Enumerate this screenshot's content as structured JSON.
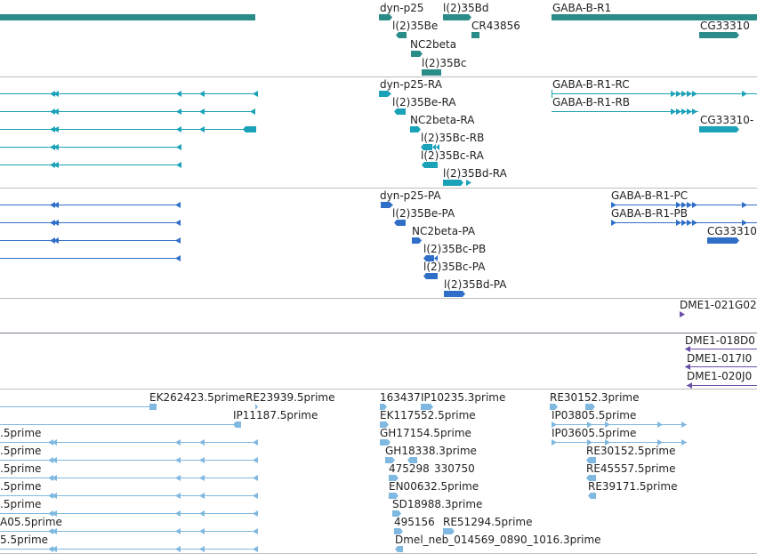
{
  "colors": {
    "gene": "#2a8c88",
    "mrna": "#1aa2b8",
    "protein": "#2f6fc8",
    "ests_purple": "#6b4fa8",
    "ests_light": "#7fb8e0",
    "separator": "#bdbdbd"
  },
  "genes": {
    "labels": [
      "dyn-p25",
      "l(2)35Bd",
      "GABA-B-R1",
      "l(2)35Be",
      "CR43856",
      "NC2beta",
      "CG33310",
      "l(2)35Bc"
    ]
  },
  "transcripts": {
    "labels": [
      "dyn-p25-RA",
      "GABA-B-R1-RC",
      "l(2)35Be-RA",
      "GABA-B-R1-RB",
      "NC2beta-RA",
      "CG33310-",
      "l(2)35Bc-RB",
      "l(2)35Bc-RA",
      "l(2)35Bd-RA"
    ]
  },
  "proteins": {
    "labels": [
      "dyn-p25-PA",
      "GABA-B-R1-PC",
      "l(2)35Be-PA",
      "GABA-B-R1-PB",
      "NC2beta-PA",
      "CG33310",
      "l(2)35Bc-PB",
      "l(2)35Bc-PA",
      "l(2)35Bd-PA"
    ]
  },
  "clones1": {
    "labels": [
      "DME1-021G02"
    ]
  },
  "clones2": {
    "labels": [
      "DME1-018D0",
      "DME1-017I0",
      "DME1-020J0"
    ]
  },
  "ests": {
    "labels": [
      "EK262423.5prime",
      "RE23939.5prime",
      "163437",
      "IP10235.3prime",
      "RE30152.3prime",
      "IP11187.5prime",
      "EK117552.5prime",
      "IP03805.5prime",
      ".5prime",
      "GH17154.5prime",
      "IP03605.5prime",
      ".5prime",
      "GH18338.3prime",
      "RE30152.5prime",
      ".5prime",
      "475298",
      "330750",
      "RE45557.5prime",
      ".5prime",
      "EN00632.5prime",
      "RE39171.5prime",
      ".5prime",
      "SD18988.3prime",
      "A05.5prime",
      "495156",
      "RE51294.5prime",
      "5.5prime",
      "Dmel_neb_014569_0890_1016.3prime"
    ]
  }
}
